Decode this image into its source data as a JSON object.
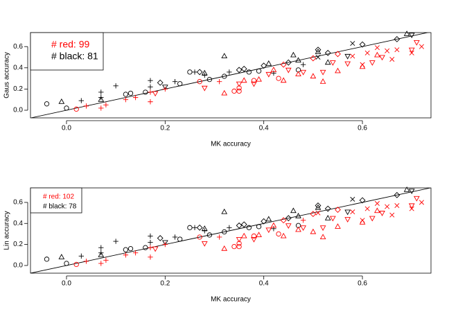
{
  "chart_data": [
    {
      "type": "scatter",
      "x_label": "MK accuracy",
      "y_label": "Gaus accuracy",
      "xlim": [
        -0.073,
        0.739
      ],
      "ylim": [
        -0.072,
        0.732
      ],
      "xticks": [
        {
          "value": 0,
          "label": "0.0"
        },
        0.2,
        0.4,
        0.6
      ],
      "yticks": [
        {
          "value": 0,
          "label": "0.0"
        },
        0.2,
        0.4,
        0.6
      ],
      "abline": {
        "intercept": 0,
        "slope": 1
      },
      "legend": "top-left",
      "legend_entries": [
        {
          "text": "# red: 99",
          "color": "#ff0000"
        },
        {
          "text": "# black: 81",
          "color": "#000000"
        }
      ],
      "series": [
        {
          "color": "#000000",
          "marker": "circle",
          "x": [
            -0.04,
            0.0,
            0.12,
            0.13,
            0.16,
            0.23,
            0.25,
            0.29,
            0.32,
            0.37,
            0.39,
            0.47
          ],
          "values": [
            0.06,
            0.02,
            0.15,
            0.16,
            0.17,
            0.25,
            0.36,
            0.29,
            0.32,
            0.36,
            0.37,
            0.38
          ]
        },
        {
          "color": "#000000",
          "marker": "triangle",
          "x": [
            -0.01,
            0.07,
            0.28,
            0.32,
            0.41,
            0.46,
            0.47,
            0.51,
            0.53,
            0.69
          ],
          "values": [
            0.08,
            0.1,
            0.35,
            0.51,
            0.44,
            0.52,
            0.47,
            0.55,
            0.45,
            0.72
          ]
        },
        {
          "color": "#000000",
          "marker": "plus",
          "x": [
            0.03,
            0.07,
            0.07,
            0.1,
            0.17,
            0.17,
            0.22,
            0.26,
            0.28,
            0.33,
            0.42,
            0.48
          ],
          "values": [
            0.09,
            0.12,
            0.17,
            0.23,
            0.28,
            0.22,
            0.27,
            0.36,
            0.33,
            0.36,
            0.35,
            0.43
          ]
        },
        {
          "color": "#000000",
          "marker": "diamond",
          "x": [
            0.19,
            0.27,
            0.35,
            0.36,
            0.4,
            0.45,
            0.51,
            0.53,
            0.6,
            0.67
          ],
          "values": [
            0.26,
            0.36,
            0.38,
            0.39,
            0.42,
            0.45,
            0.57,
            0.54,
            0.62,
            0.67
          ]
        },
        {
          "color": "#000000",
          "marker": "triangle-down",
          "x": [
            0.2,
            0.57,
            0.7
          ],
          "values": [
            0.22,
            0.51,
            0.71
          ]
        },
        {
          "color": "#000000",
          "marker": "cross",
          "x": [
            0.58,
            0.51
          ],
          "values": [
            0.63,
            0.5
          ]
        },
        {
          "color": "#ff0000",
          "marker": "circle",
          "x": [
            0.02,
            0.27,
            0.34,
            0.35,
            0.35,
            0.38,
            0.43
          ],
          "values": [
            0.01,
            0.27,
            0.18,
            0.18,
            0.21,
            0.28,
            0.3
          ]
        },
        {
          "color": "#ff0000",
          "marker": "triangle",
          "x": [
            0.32,
            0.36,
            0.39,
            0.42,
            0.44,
            0.47,
            0.5,
            0.52,
            0.55,
            0.6,
            0.63
          ],
          "values": [
            0.16,
            0.28,
            0.29,
            0.38,
            0.28,
            0.34,
            0.32,
            0.27,
            0.37,
            0.41,
            0.52
          ]
        },
        {
          "color": "#ff0000",
          "marker": "plus",
          "x": [
            0.04,
            0.07,
            0.08,
            0.12,
            0.14,
            0.17,
            0.17,
            0.2,
            0.31
          ],
          "values": [
            0.04,
            0.02,
            0.05,
            0.1,
            0.12,
            0.08,
            0.17,
            0.2,
            0.27
          ]
        },
        {
          "color": "#ff0000",
          "marker": "triangle-down",
          "x": [
            0.18,
            0.28,
            0.35,
            0.38,
            0.41,
            0.45,
            0.48,
            0.52,
            0.54,
            0.57,
            0.62,
            0.64,
            0.7,
            0.71
          ],
          "values": [
            0.16,
            0.21,
            0.25,
            0.25,
            0.34,
            0.38,
            0.36,
            0.36,
            0.45,
            0.44,
            0.45,
            0.5,
            0.57,
            0.64
          ]
        },
        {
          "color": "#ff0000",
          "marker": "cross",
          "x": [
            0.58,
            0.6,
            0.61,
            0.63,
            0.66,
            0.67,
            0.7,
            0.72,
            0.65
          ],
          "values": [
            0.51,
            0.43,
            0.54,
            0.59,
            0.48,
            0.57,
            0.54,
            0.6,
            0.56
          ]
        },
        {
          "color": "#ff0000",
          "marker": "diamond",
          "x": [
            0.44,
            0.55,
            0.5
          ],
          "values": [
            0.43,
            0.53,
            0.49
          ]
        }
      ]
    },
    {
      "type": "scatter",
      "x_label": "MK accuracy",
      "y_label": "Lin accuracy",
      "xlim": [
        -0.073,
        0.739
      ],
      "ylim": [
        -0.073,
        0.738
      ],
      "xticks": [
        {
          "value": 0,
          "label": "0.0"
        },
        0.2,
        0.4,
        0.6
      ],
      "yticks": [
        {
          "value": 0,
          "label": "0.0"
        },
        0.2,
        0.4,
        0.6
      ],
      "abline": {
        "intercept": 0,
        "slope": 1
      },
      "legend": "top-left",
      "legend_entries": [
        {
          "text": "# red: 102",
          "color": "#ff0000"
        },
        {
          "text": "# black: 78",
          "color": "#000000"
        }
      ],
      "series": [
        {
          "color": "#000000",
          "marker": "circle",
          "x": [
            -0.04,
            0.0,
            0.12,
            0.13,
            0.16,
            0.23,
            0.25,
            0.29,
            0.32,
            0.37,
            0.39,
            0.47
          ],
          "values": [
            0.06,
            0.02,
            0.15,
            0.16,
            0.17,
            0.25,
            0.36,
            0.29,
            0.32,
            0.36,
            0.37,
            0.38
          ]
        },
        {
          "color": "#000000",
          "marker": "triangle",
          "x": [
            -0.01,
            0.07,
            0.28,
            0.32,
            0.41,
            0.46,
            0.47,
            0.51,
            0.53,
            0.69
          ],
          "values": [
            0.08,
            0.1,
            0.35,
            0.51,
            0.44,
            0.52,
            0.47,
            0.55,
            0.45,
            0.72
          ]
        },
        {
          "color": "#000000",
          "marker": "plus",
          "x": [
            0.03,
            0.07,
            0.07,
            0.1,
            0.17,
            0.17,
            0.22,
            0.26,
            0.28,
            0.33,
            0.42
          ],
          "values": [
            0.09,
            0.12,
            0.17,
            0.23,
            0.28,
            0.22,
            0.27,
            0.36,
            0.33,
            0.36,
            0.35
          ]
        },
        {
          "color": "#000000",
          "marker": "diamond",
          "x": [
            0.19,
            0.27,
            0.35,
            0.36,
            0.4,
            0.45,
            0.51,
            0.53,
            0.6,
            0.67
          ],
          "values": [
            0.26,
            0.36,
            0.38,
            0.39,
            0.42,
            0.45,
            0.57,
            0.54,
            0.62,
            0.67
          ]
        },
        {
          "color": "#000000",
          "marker": "triangle-down",
          "x": [
            0.2,
            0.57,
            0.7
          ],
          "values": [
            0.22,
            0.51,
            0.71
          ]
        },
        {
          "color": "#000000",
          "marker": "cross",
          "x": [
            0.58
          ],
          "values": [
            0.63
          ]
        },
        {
          "color": "#ff0000",
          "marker": "circle",
          "x": [
            0.02,
            0.27,
            0.34,
            0.35,
            0.35,
            0.38,
            0.43
          ],
          "values": [
            0.01,
            0.27,
            0.18,
            0.18,
            0.21,
            0.28,
            0.3
          ]
        },
        {
          "color": "#ff0000",
          "marker": "triangle",
          "x": [
            0.32,
            0.36,
            0.39,
            0.42,
            0.44,
            0.47,
            0.5,
            0.52,
            0.55,
            0.6,
            0.63
          ],
          "values": [
            0.16,
            0.28,
            0.29,
            0.38,
            0.28,
            0.34,
            0.32,
            0.27,
            0.37,
            0.41,
            0.52
          ]
        },
        {
          "color": "#ff0000",
          "marker": "plus",
          "x": [
            0.04,
            0.07,
            0.08,
            0.12,
            0.14,
            0.17,
            0.17,
            0.2,
            0.31,
            0.48
          ],
          "values": [
            0.04,
            0.02,
            0.05,
            0.1,
            0.12,
            0.08,
            0.17,
            0.2,
            0.27,
            0.43
          ]
        },
        {
          "color": "#ff0000",
          "marker": "triangle-down",
          "x": [
            0.18,
            0.28,
            0.35,
            0.38,
            0.41,
            0.45,
            0.48,
            0.52,
            0.54,
            0.57,
            0.62,
            0.64,
            0.7,
            0.71
          ],
          "values": [
            0.16,
            0.21,
            0.25,
            0.25,
            0.34,
            0.38,
            0.36,
            0.36,
            0.45,
            0.44,
            0.45,
            0.5,
            0.57,
            0.64
          ]
        },
        {
          "color": "#ff0000",
          "marker": "cross",
          "x": [
            0.51,
            0.58,
            0.6,
            0.61,
            0.63,
            0.66,
            0.67,
            0.7,
            0.72,
            0.65
          ],
          "values": [
            0.5,
            0.51,
            0.43,
            0.54,
            0.59,
            0.48,
            0.57,
            0.54,
            0.6,
            0.56
          ]
        },
        {
          "color": "#ff0000",
          "marker": "diamond",
          "x": [
            0.44,
            0.55,
            0.5
          ],
          "values": [
            0.43,
            0.53,
            0.49
          ]
        }
      ]
    }
  ]
}
